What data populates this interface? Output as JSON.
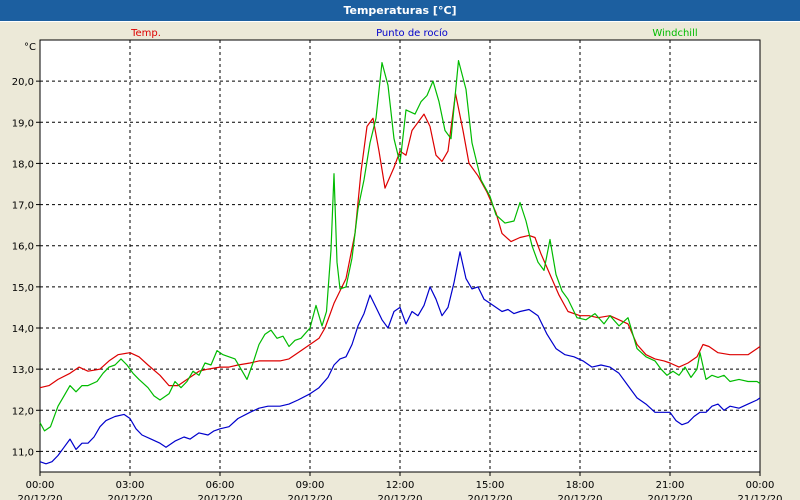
{
  "window": {
    "title": "Temperaturas [°C]"
  },
  "chart_data": {
    "type": "line",
    "title": "Temperaturas [°C]",
    "ylabel": "°C",
    "xlabel": "",
    "ylim": [
      10.5,
      21.0
    ],
    "yticks": [
      "11,0",
      "12,0",
      "13,0",
      "14,0",
      "15,0",
      "16,0",
      "17,0",
      "18,0",
      "19,0",
      "20,0"
    ],
    "xlim_hours": [
      0,
      24
    ],
    "xticks": [
      {
        "time": "00:00",
        "date": "20/12/20"
      },
      {
        "time": "03:00",
        "date": "20/12/20"
      },
      {
        "time": "06:00",
        "date": "20/12/20"
      },
      {
        "time": "09:00",
        "date": "20/12/20"
      },
      {
        "time": "12:00",
        "date": "20/12/20"
      },
      {
        "time": "15:00",
        "date": "20/12/20"
      },
      {
        "time": "18:00",
        "date": "20/12/20"
      },
      {
        "time": "21:00",
        "date": "20/12/20"
      },
      {
        "time": "00:00",
        "date": "21/12/20"
      }
    ],
    "grid": true,
    "legend_position": "top",
    "series": [
      {
        "name": "Temp.",
        "color": "#dd0000",
        "points": [
          [
            0.0,
            12.55
          ],
          [
            0.3,
            12.6
          ],
          [
            0.6,
            12.75
          ],
          [
            1.0,
            12.9
          ],
          [
            1.3,
            13.05
          ],
          [
            1.6,
            12.95
          ],
          [
            2.0,
            13.0
          ],
          [
            2.3,
            13.2
          ],
          [
            2.6,
            13.35
          ],
          [
            3.0,
            13.4
          ],
          [
            3.3,
            13.3
          ],
          [
            3.6,
            13.1
          ],
          [
            4.0,
            12.85
          ],
          [
            4.3,
            12.6
          ],
          [
            4.6,
            12.6
          ],
          [
            5.0,
            12.8
          ],
          [
            5.3,
            12.95
          ],
          [
            5.6,
            13.0
          ],
          [
            6.0,
            13.05
          ],
          [
            6.3,
            13.05
          ],
          [
            6.6,
            13.1
          ],
          [
            7.0,
            13.15
          ],
          [
            7.3,
            13.2
          ],
          [
            7.6,
            13.2
          ],
          [
            8.0,
            13.2
          ],
          [
            8.3,
            13.25
          ],
          [
            8.6,
            13.4
          ],
          [
            9.0,
            13.6
          ],
          [
            9.3,
            13.75
          ],
          [
            9.5,
            14.0
          ],
          [
            9.8,
            14.6
          ],
          [
            10.2,
            15.2
          ],
          [
            10.5,
            16.3
          ],
          [
            10.7,
            17.8
          ],
          [
            10.9,
            18.9
          ],
          [
            11.1,
            19.1
          ],
          [
            11.3,
            18.3
          ],
          [
            11.5,
            17.4
          ],
          [
            11.8,
            17.9
          ],
          [
            12.0,
            18.3
          ],
          [
            12.2,
            18.2
          ],
          [
            12.4,
            18.8
          ],
          [
            12.6,
            19.0
          ],
          [
            12.8,
            19.2
          ],
          [
            13.0,
            18.9
          ],
          [
            13.2,
            18.2
          ],
          [
            13.4,
            18.05
          ],
          [
            13.6,
            18.3
          ],
          [
            13.85,
            19.7
          ],
          [
            14.1,
            18.8
          ],
          [
            14.3,
            18.0
          ],
          [
            14.6,
            17.7
          ],
          [
            14.9,
            17.3
          ],
          [
            15.2,
            16.8
          ],
          [
            15.4,
            16.3
          ],
          [
            15.7,
            16.1
          ],
          [
            16.0,
            16.2
          ],
          [
            16.3,
            16.25
          ],
          [
            16.5,
            16.2
          ],
          [
            16.7,
            15.8
          ],
          [
            17.0,
            15.3
          ],
          [
            17.3,
            14.8
          ],
          [
            17.6,
            14.4
          ],
          [
            18.0,
            14.3
          ],
          [
            18.3,
            14.3
          ],
          [
            18.6,
            14.25
          ],
          [
            19.0,
            14.3
          ],
          [
            19.3,
            14.2
          ],
          [
            19.6,
            14.1
          ],
          [
            19.9,
            13.6
          ],
          [
            20.2,
            13.35
          ],
          [
            20.5,
            13.25
          ],
          [
            20.8,
            13.2
          ],
          [
            21.0,
            13.15
          ],
          [
            21.3,
            13.05
          ],
          [
            21.6,
            13.15
          ],
          [
            21.9,
            13.3
          ],
          [
            22.1,
            13.6
          ],
          [
            22.3,
            13.55
          ],
          [
            22.6,
            13.4
          ],
          [
            23.0,
            13.35
          ],
          [
            23.3,
            13.35
          ],
          [
            23.6,
            13.35
          ],
          [
            23.9,
            13.5
          ],
          [
            24.0,
            13.55
          ]
        ]
      },
      {
        "name": "Punto de rocío",
        "color": "#0000cc",
        "points": [
          [
            0.0,
            10.75
          ],
          [
            0.2,
            10.7
          ],
          [
            0.4,
            10.75
          ],
          [
            0.6,
            10.9
          ],
          [
            0.8,
            11.1
          ],
          [
            1.0,
            11.3
          ],
          [
            1.2,
            11.05
          ],
          [
            1.4,
            11.2
          ],
          [
            1.6,
            11.2
          ],
          [
            1.8,
            11.35
          ],
          [
            2.0,
            11.6
          ],
          [
            2.2,
            11.75
          ],
          [
            2.5,
            11.85
          ],
          [
            2.8,
            11.9
          ],
          [
            3.0,
            11.8
          ],
          [
            3.2,
            11.55
          ],
          [
            3.4,
            11.4
          ],
          [
            3.7,
            11.3
          ],
          [
            4.0,
            11.2
          ],
          [
            4.2,
            11.1
          ],
          [
            4.5,
            11.25
          ],
          [
            4.8,
            11.35
          ],
          [
            5.0,
            11.3
          ],
          [
            5.3,
            11.45
          ],
          [
            5.6,
            11.4
          ],
          [
            5.8,
            11.5
          ],
          [
            6.0,
            11.55
          ],
          [
            6.3,
            11.6
          ],
          [
            6.6,
            11.8
          ],
          [
            7.0,
            11.95
          ],
          [
            7.3,
            12.05
          ],
          [
            7.6,
            12.1
          ],
          [
            8.0,
            12.1
          ],
          [
            8.3,
            12.15
          ],
          [
            8.6,
            12.25
          ],
          [
            9.0,
            12.4
          ],
          [
            9.3,
            12.55
          ],
          [
            9.6,
            12.8
          ],
          [
            9.8,
            13.1
          ],
          [
            10.0,
            13.25
          ],
          [
            10.2,
            13.3
          ],
          [
            10.4,
            13.6
          ],
          [
            10.6,
            14.05
          ],
          [
            10.8,
            14.35
          ],
          [
            11.0,
            14.8
          ],
          [
            11.2,
            14.5
          ],
          [
            11.4,
            14.2
          ],
          [
            11.6,
            14.0
          ],
          [
            11.8,
            14.4
          ],
          [
            12.0,
            14.5
          ],
          [
            12.2,
            14.1
          ],
          [
            12.4,
            14.4
          ],
          [
            12.6,
            14.3
          ],
          [
            12.8,
            14.55
          ],
          [
            13.0,
            15.0
          ],
          [
            13.2,
            14.7
          ],
          [
            13.4,
            14.3
          ],
          [
            13.6,
            14.5
          ],
          [
            13.8,
            15.1
          ],
          [
            14.0,
            15.85
          ],
          [
            14.2,
            15.2
          ],
          [
            14.4,
            14.95
          ],
          [
            14.6,
            15.0
          ],
          [
            14.8,
            14.7
          ],
          [
            15.0,
            14.6
          ],
          [
            15.2,
            14.5
          ],
          [
            15.4,
            14.4
          ],
          [
            15.6,
            14.45
          ],
          [
            15.8,
            14.35
          ],
          [
            16.0,
            14.4
          ],
          [
            16.3,
            14.45
          ],
          [
            16.6,
            14.3
          ],
          [
            16.9,
            13.85
          ],
          [
            17.2,
            13.5
          ],
          [
            17.5,
            13.35
          ],
          [
            17.8,
            13.3
          ],
          [
            18.1,
            13.2
          ],
          [
            18.4,
            13.05
          ],
          [
            18.7,
            13.1
          ],
          [
            19.0,
            13.05
          ],
          [
            19.3,
            12.9
          ],
          [
            19.6,
            12.6
          ],
          [
            19.9,
            12.3
          ],
          [
            20.2,
            12.15
          ],
          [
            20.5,
            11.95
          ],
          [
            20.8,
            11.95
          ],
          [
            21.0,
            11.95
          ],
          [
            21.2,
            11.75
          ],
          [
            21.4,
            11.65
          ],
          [
            21.6,
            11.7
          ],
          [
            21.8,
            11.85
          ],
          [
            22.0,
            11.95
          ],
          [
            22.2,
            11.95
          ],
          [
            22.4,
            12.1
          ],
          [
            22.6,
            12.15
          ],
          [
            22.8,
            12.0
          ],
          [
            23.0,
            12.1
          ],
          [
            23.3,
            12.05
          ],
          [
            23.6,
            12.15
          ],
          [
            23.9,
            12.25
          ],
          [
            24.0,
            12.3
          ]
        ]
      },
      {
        "name": "Windchill",
        "color": "#00bb00",
        "points": [
          [
            0.0,
            11.7
          ],
          [
            0.15,
            11.5
          ],
          [
            0.35,
            11.6
          ],
          [
            0.6,
            12.1
          ],
          [
            0.8,
            12.35
          ],
          [
            1.0,
            12.6
          ],
          [
            1.2,
            12.45
          ],
          [
            1.4,
            12.6
          ],
          [
            1.6,
            12.6
          ],
          [
            1.9,
            12.7
          ],
          [
            2.1,
            12.9
          ],
          [
            2.3,
            13.05
          ],
          [
            2.5,
            13.1
          ],
          [
            2.7,
            13.25
          ],
          [
            2.9,
            13.1
          ],
          [
            3.1,
            12.9
          ],
          [
            3.3,
            12.75
          ],
          [
            3.6,
            12.55
          ],
          [
            3.8,
            12.35
          ],
          [
            4.0,
            12.25
          ],
          [
            4.3,
            12.4
          ],
          [
            4.5,
            12.7
          ],
          [
            4.7,
            12.55
          ],
          [
            4.9,
            12.7
          ],
          [
            5.1,
            12.95
          ],
          [
            5.3,
            12.85
          ],
          [
            5.5,
            13.15
          ],
          [
            5.7,
            13.1
          ],
          [
            5.9,
            13.45
          ],
          [
            6.1,
            13.35
          ],
          [
            6.3,
            13.3
          ],
          [
            6.5,
            13.25
          ],
          [
            6.7,
            13.0
          ],
          [
            6.9,
            12.75
          ],
          [
            7.1,
            13.15
          ],
          [
            7.3,
            13.6
          ],
          [
            7.5,
            13.85
          ],
          [
            7.7,
            13.95
          ],
          [
            7.9,
            13.75
          ],
          [
            8.1,
            13.8
          ],
          [
            8.3,
            13.55
          ],
          [
            8.5,
            13.7
          ],
          [
            8.7,
            13.75
          ],
          [
            9.0,
            14.0
          ],
          [
            9.2,
            14.55
          ],
          [
            9.4,
            14.05
          ],
          [
            9.55,
            14.4
          ],
          [
            9.7,
            15.9
          ],
          [
            9.8,
            17.75
          ],
          [
            9.9,
            15.6
          ],
          [
            10.0,
            14.95
          ],
          [
            10.2,
            15.0
          ],
          [
            10.4,
            15.7
          ],
          [
            10.6,
            16.9
          ],
          [
            10.8,
            17.6
          ],
          [
            11.0,
            18.5
          ],
          [
            11.2,
            19.1
          ],
          [
            11.4,
            20.45
          ],
          [
            11.6,
            19.9
          ],
          [
            11.8,
            18.6
          ],
          [
            12.0,
            18.0
          ],
          [
            12.2,
            19.3
          ],
          [
            12.5,
            19.2
          ],
          [
            12.7,
            19.5
          ],
          [
            12.9,
            19.65
          ],
          [
            13.1,
            20.0
          ],
          [
            13.3,
            19.5
          ],
          [
            13.5,
            18.8
          ],
          [
            13.7,
            18.6
          ],
          [
            13.95,
            20.5
          ],
          [
            14.2,
            19.8
          ],
          [
            14.4,
            18.5
          ],
          [
            14.7,
            17.6
          ],
          [
            15.0,
            17.2
          ],
          [
            15.2,
            16.75
          ],
          [
            15.5,
            16.55
          ],
          [
            15.8,
            16.6
          ],
          [
            16.0,
            17.05
          ],
          [
            16.2,
            16.6
          ],
          [
            16.4,
            16.0
          ],
          [
            16.6,
            15.6
          ],
          [
            16.8,
            15.4
          ],
          [
            17.0,
            16.15
          ],
          [
            17.2,
            15.3
          ],
          [
            17.4,
            14.9
          ],
          [
            17.6,
            14.7
          ],
          [
            17.9,
            14.25
          ],
          [
            18.2,
            14.2
          ],
          [
            18.5,
            14.35
          ],
          [
            18.8,
            14.1
          ],
          [
            19.0,
            14.3
          ],
          [
            19.3,
            14.05
          ],
          [
            19.6,
            14.25
          ],
          [
            19.9,
            13.5
          ],
          [
            20.2,
            13.3
          ],
          [
            20.5,
            13.2
          ],
          [
            20.7,
            13.0
          ],
          [
            20.9,
            12.85
          ],
          [
            21.1,
            12.95
          ],
          [
            21.3,
            12.85
          ],
          [
            21.5,
            13.05
          ],
          [
            21.7,
            12.8
          ],
          [
            21.9,
            13.0
          ],
          [
            22.0,
            13.4
          ],
          [
            22.2,
            12.75
          ],
          [
            22.4,
            12.85
          ],
          [
            22.6,
            12.8
          ],
          [
            22.8,
            12.85
          ],
          [
            23.0,
            12.7
          ],
          [
            23.3,
            12.75
          ],
          [
            23.6,
            12.7
          ],
          [
            23.9,
            12.7
          ],
          [
            24.0,
            12.65
          ]
        ]
      }
    ]
  }
}
